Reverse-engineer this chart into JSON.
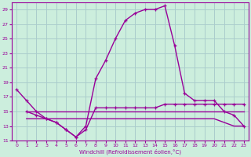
{
  "xlabel": "Windchill (Refroidissement éolien,°C)",
  "background_color": "#cceedd",
  "grid_color": "#aacccc",
  "line_color": "#990099",
  "xlim": [
    -0.5,
    23.5
  ],
  "ylim": [
    11,
    30
  ],
  "yticks": [
    11,
    13,
    15,
    17,
    19,
    21,
    23,
    25,
    27,
    29
  ],
  "xticks": [
    0,
    1,
    2,
    3,
    4,
    5,
    6,
    7,
    8,
    9,
    10,
    11,
    12,
    13,
    14,
    15,
    16,
    17,
    18,
    19,
    20,
    21,
    22,
    23
  ],
  "line1_x": [
    0,
    1,
    2,
    3,
    4,
    5,
    6,
    7,
    8,
    9,
    10,
    11,
    12,
    13,
    14,
    15,
    16,
    17,
    18,
    19,
    20,
    21,
    22,
    23
  ],
  "line1_y": [
    18,
    16.5,
    15,
    14,
    13.5,
    12.5,
    11.5,
    13,
    19.5,
    22,
    25,
    27.5,
    28.5,
    29,
    29,
    29.5,
    24,
    17.5,
    16.5,
    16.5,
    16.5,
    15,
    14.5,
    13
  ],
  "line2_x": [
    1,
    2,
    3,
    4,
    5,
    6,
    7,
    8,
    9,
    10,
    11,
    12,
    13,
    14,
    15,
    16,
    17,
    18,
    19,
    20,
    21,
    22,
    23
  ],
  "line2_y": [
    15,
    15,
    15,
    15,
    15,
    15,
    15,
    15,
    15,
    15,
    15,
    15,
    15,
    15,
    15,
    15,
    15,
    15,
    15,
    15,
    15,
    15,
    15
  ],
  "line3_x": [
    1,
    2,
    3,
    4,
    5,
    6,
    7,
    8,
    9,
    10,
    11,
    12,
    13,
    14,
    15,
    16,
    17,
    18,
    19,
    20,
    21,
    22,
    23
  ],
  "line3_y": [
    15,
    14.5,
    14,
    13.5,
    12.5,
    11.5,
    12.5,
    15.5,
    15.5,
    15.5,
    15.5,
    15.5,
    15.5,
    15.5,
    16,
    16,
    16,
    16,
    16,
    16,
    16,
    16,
    16
  ],
  "line4_x": [
    1,
    2,
    3,
    4,
    5,
    6,
    7,
    8,
    9,
    10,
    11,
    12,
    13,
    14,
    15,
    16,
    17,
    18,
    19,
    20,
    21,
    22,
    23
  ],
  "line4_y": [
    14,
    14,
    14,
    14,
    14,
    14,
    14,
    14,
    14,
    14,
    14,
    14,
    14,
    14,
    14,
    14,
    14,
    14,
    14,
    14,
    13.5,
    13,
    13
  ]
}
